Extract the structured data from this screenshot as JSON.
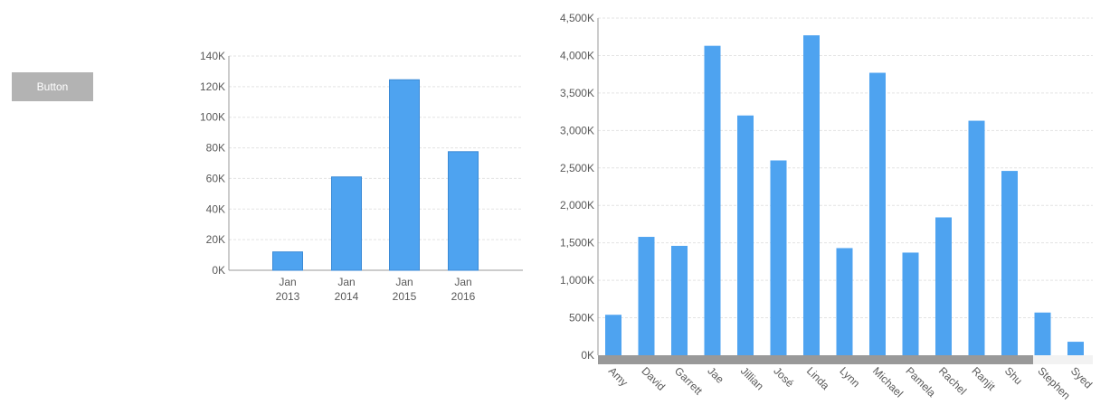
{
  "button": {
    "label": "Button"
  },
  "colors": {
    "bar": "#4ea3f0",
    "bar_stroke": "#3a8ad6",
    "grid": "#e3e3e3",
    "axis": "#9a9a9a",
    "scrollbar": "#999999"
  },
  "chart_data": [
    {
      "type": "bar",
      "categories": [
        [
          "Jan",
          "2013"
        ],
        [
          "Jan",
          "2014"
        ],
        [
          "Jan",
          "2015"
        ],
        [
          "Jan",
          "2016"
        ]
      ],
      "values": [
        12000,
        61000,
        124500,
        77500
      ],
      "ylim": [
        0,
        140000
      ],
      "yticks": [
        0,
        20000,
        40000,
        60000,
        80000,
        100000,
        120000,
        140000
      ],
      "ytick_labels": [
        "0K",
        "20K",
        "40K",
        "60K",
        "80K",
        "100K",
        "120K",
        "140K"
      ],
      "grid": true
    },
    {
      "type": "bar",
      "categories": [
        "Amy",
        "David",
        "Garrett",
        "Jae",
        "Jillian",
        "José",
        "Linda",
        "Lynn",
        "Michael",
        "Pamela",
        "Rachel",
        "Ranjit",
        "Shu",
        "Stephen",
        "Syed"
      ],
      "values": [
        540000,
        1580000,
        1460000,
        4130000,
        3200000,
        2600000,
        4270000,
        1430000,
        3770000,
        1370000,
        1840000,
        3130000,
        2460000,
        570000,
        180000
      ],
      "ylim": [
        0,
        4500000
      ],
      "yticks": [
        0,
        500000,
        1000000,
        1500000,
        2000000,
        2500000,
        3000000,
        3500000,
        4000000,
        4500000
      ],
      "ytick_labels": [
        "0K",
        "500K",
        "1,000K",
        "1,500K",
        "2,000K",
        "2,500K",
        "3,000K",
        "3,500K",
        "4,000K",
        "4,500K"
      ],
      "grid": true,
      "has_scrollbar": true
    }
  ]
}
